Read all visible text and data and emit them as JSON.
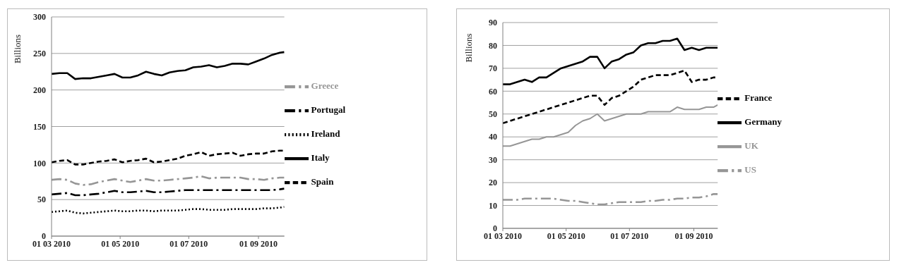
{
  "chart_data": [
    {
      "type": "line",
      "ylabel": "Billions",
      "grid": "y",
      "legend": "right",
      "x": [
        "2010-03-01",
        "2010-03-08",
        "2010-03-15",
        "2010-03-22",
        "2010-03-29",
        "2010-04-05",
        "2010-04-12",
        "2010-04-19",
        "2010-04-26",
        "2010-05-03",
        "2010-05-10",
        "2010-05-17",
        "2010-05-24",
        "2010-05-31",
        "2010-06-07",
        "2010-06-14",
        "2010-06-21",
        "2010-06-28",
        "2010-07-05",
        "2010-07-12",
        "2010-07-19",
        "2010-07-26",
        "2010-08-02",
        "2010-08-09",
        "2010-08-16",
        "2010-08-23",
        "2010-08-30",
        "2010-09-06",
        "2010-09-13",
        "2010-09-20",
        "2010-09-24"
      ],
      "xlim": [
        "2010-03-01",
        "2010-09-24"
      ],
      "xticks": [
        {
          "value": "2010-03-01",
          "label": "01 03 2010"
        },
        {
          "value": "2010-05-01",
          "label": "01 05 2010"
        },
        {
          "value": "2010-07-01",
          "label": "01 07 2010"
        },
        {
          "value": "2010-09-01",
          "label": "01 09 2010"
        }
      ],
      "ylim": [
        0,
        300
      ],
      "yticks": [
        0,
        50,
        100,
        150,
        200,
        250,
        300
      ],
      "series": [
        {
          "name": "Greece",
          "color": "#969696",
          "line_style": "dashdot",
          "values": [
            77,
            78,
            77,
            72,
            70,
            71,
            74,
            76,
            78,
            76,
            74,
            76,
            78,
            76,
            76,
            77,
            78,
            79,
            80,
            82,
            79,
            80,
            80,
            80,
            80,
            78,
            78,
            77,
            79,
            80,
            80
          ]
        },
        {
          "name": "Portugal",
          "color": "#000000",
          "line_style": "dashdot",
          "values": [
            57,
            58,
            59,
            56,
            56,
            57,
            58,
            60,
            62,
            60,
            60,
            61,
            62,
            60,
            60,
            61,
            62,
            63,
            63,
            63,
            63,
            63,
            63,
            63,
            63,
            63,
            63,
            63,
            63,
            64,
            65
          ]
        },
        {
          "name": "Ireland",
          "color": "#000000",
          "line_style": "dotted",
          "values": [
            33,
            34,
            35,
            32,
            31,
            32,
            33,
            34,
            35,
            34,
            34,
            35,
            35,
            34,
            35,
            35,
            35,
            36,
            37,
            37,
            36,
            36,
            36,
            37,
            37,
            37,
            37,
            38,
            38,
            39,
            40
          ]
        },
        {
          "name": "Italy",
          "color": "#000000",
          "line_style": "solid",
          "values": [
            222,
            223,
            223,
            215,
            216,
            216,
            218,
            220,
            222,
            217,
            217,
            220,
            225,
            222,
            220,
            224,
            226,
            227,
            231,
            232,
            234,
            231,
            233,
            236,
            236,
            235,
            239,
            243,
            248,
            251,
            252
          ]
        },
        {
          "name": "Spain",
          "color": "#000000",
          "line_style": "dashed",
          "values": [
            101,
            103,
            104,
            98,
            98,
            100,
            102,
            103,
            105,
            101,
            103,
            104,
            106,
            101,
            102,
            104,
            106,
            110,
            112,
            115,
            110,
            112,
            113,
            114,
            110,
            112,
            113,
            113,
            116,
            117,
            117
          ]
        }
      ]
    },
    {
      "type": "line",
      "ylabel": "Billions",
      "grid": "y",
      "legend": "right",
      "x": [
        "2010-03-01",
        "2010-03-08",
        "2010-03-15",
        "2010-03-22",
        "2010-03-29",
        "2010-04-05",
        "2010-04-12",
        "2010-04-19",
        "2010-04-26",
        "2010-05-03",
        "2010-05-10",
        "2010-05-17",
        "2010-05-24",
        "2010-05-31",
        "2010-06-07",
        "2010-06-14",
        "2010-06-21",
        "2010-06-28",
        "2010-07-05",
        "2010-07-12",
        "2010-07-19",
        "2010-07-26",
        "2010-08-02",
        "2010-08-09",
        "2010-08-16",
        "2010-08-23",
        "2010-08-30",
        "2010-09-06",
        "2010-09-13",
        "2010-09-20",
        "2010-09-24"
      ],
      "xlim": [
        "2010-03-01",
        "2010-09-24"
      ],
      "xticks": [
        {
          "value": "2010-03-01",
          "label": "01 03 2010"
        },
        {
          "value": "2010-05-01",
          "label": "01 05 2010"
        },
        {
          "value": "2010-07-01",
          "label": "01 07 2010"
        },
        {
          "value": "2010-09-01",
          "label": "01 09 2010"
        }
      ],
      "ylim": [
        0,
        90
      ],
      "yticks": [
        0,
        10,
        20,
        30,
        40,
        50,
        60,
        70,
        80,
        90
      ],
      "series": [
        {
          "name": "France",
          "color": "#000000",
          "line_style": "dashed",
          "values": [
            46,
            47,
            48,
            49,
            50,
            51,
            52,
            53,
            54,
            55,
            56,
            57,
            58,
            58,
            54,
            57,
            58,
            60,
            62,
            65,
            66,
            67,
            67,
            67,
            68,
            69,
            64,
            65,
            65,
            66,
            66
          ]
        },
        {
          "name": "Germany",
          "color": "#000000",
          "line_style": "solid",
          "values": [
            63,
            63,
            64,
            65,
            64,
            66,
            66,
            68,
            70,
            71,
            72,
            73,
            75,
            75,
            70,
            73,
            74,
            76,
            77,
            80,
            81,
            81,
            82,
            82,
            83,
            78,
            79,
            78,
            79,
            79,
            79
          ]
        },
        {
          "name": "UK",
          "color": "#969696",
          "line_style": "solid",
          "values": [
            36,
            36,
            37,
            38,
            39,
            39,
            40,
            40,
            41,
            42,
            45,
            47,
            48,
            50,
            47,
            48,
            49,
            50,
            50,
            50,
            51,
            51,
            51,
            51,
            53,
            52,
            52,
            52,
            53,
            53,
            54
          ]
        },
        {
          "name": "US",
          "color": "#969696",
          "line_style": "dashdot",
          "values": [
            12.5,
            12.5,
            12.5,
            13,
            13,
            13,
            13,
            13,
            12.5,
            12,
            12,
            11.5,
            11,
            10.5,
            10.5,
            11,
            11.5,
            11.5,
            11.5,
            11.5,
            12,
            12,
            12.5,
            12.5,
            13,
            13,
            13.5,
            13.5,
            14,
            15,
            15
          ]
        }
      ]
    }
  ]
}
